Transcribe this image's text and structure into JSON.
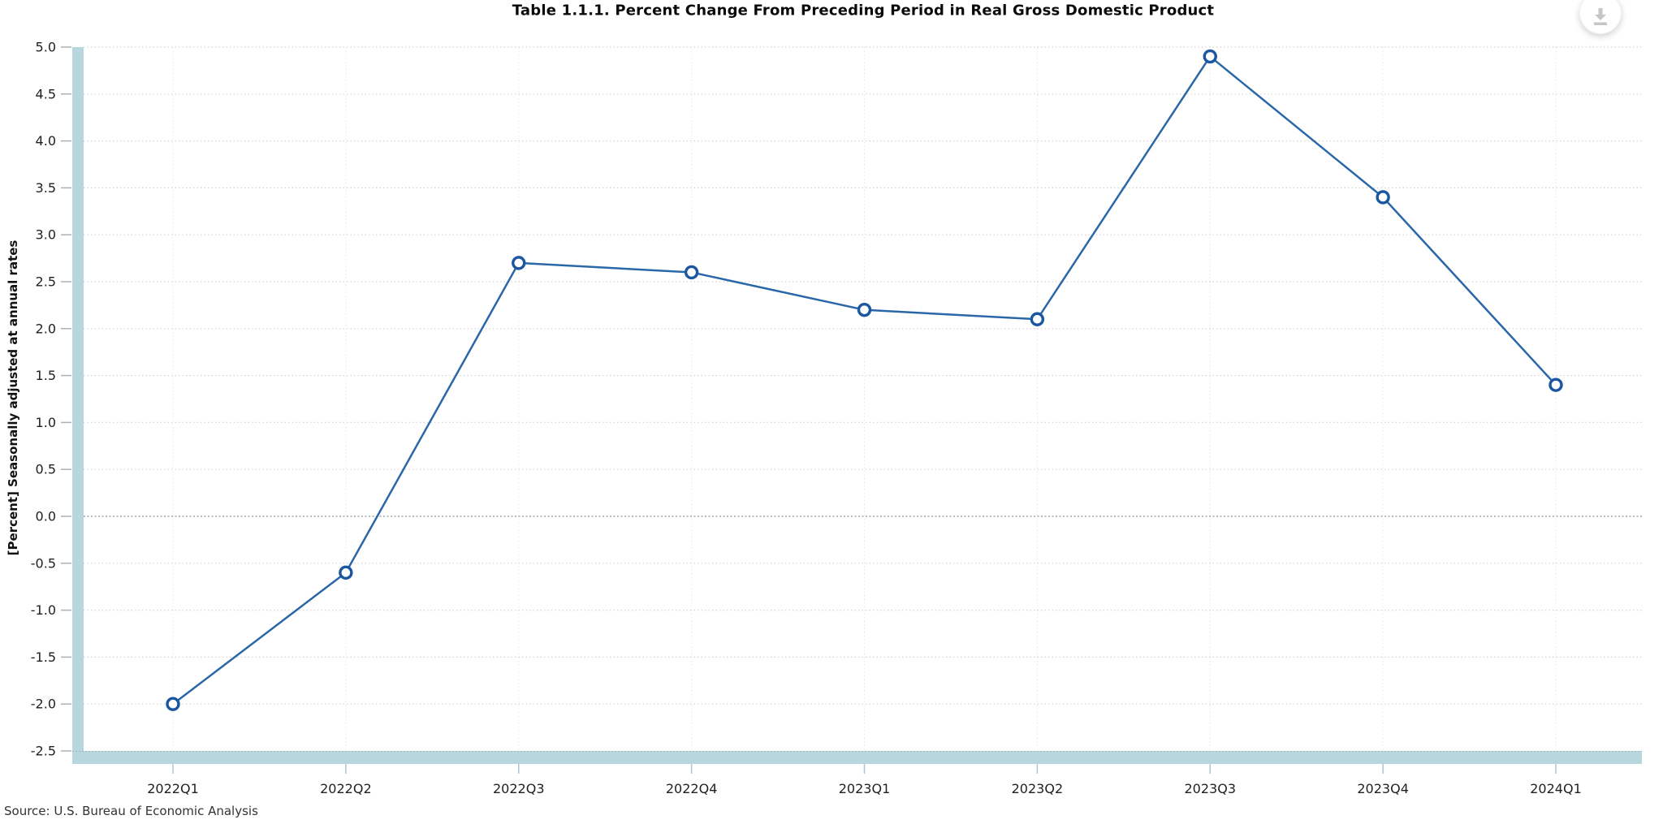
{
  "title": "Table 1.1.1. Percent Change From Preceding Period in Real Gross Domestic Product",
  "source_note": "Source: U.S. Bureau of Economic Analysis",
  "icons": {
    "download": "download-icon"
  },
  "chart_data": {
    "type": "line",
    "title": "Table 1.1.1. Percent Change From Preceding Period in Real Gross Domestic Product",
    "xlabel": "",
    "ylabel": "[Percent] Seasonally adjusted at annual rates",
    "categories": [
      "2022Q1",
      "2022Q2",
      "2022Q3",
      "2022Q4",
      "2023Q1",
      "2023Q2",
      "2023Q3",
      "2023Q4",
      "2024Q1"
    ],
    "values": [
      -2.0,
      -0.6,
      2.7,
      2.6,
      2.2,
      2.1,
      4.9,
      3.4,
      1.4
    ],
    "ylim": [
      -2.5,
      5.0
    ],
    "ytick_step": 0.5,
    "ytick_labels": [
      "5.0",
      "4.5",
      "4.0",
      "3.5",
      "3.0",
      "2.5",
      "2.0",
      "1.5",
      "1.0",
      "0.5",
      "0.0",
      "-0.5",
      "-1.0",
      "-1.5",
      "-2.0",
      "-2.5"
    ],
    "grid": true,
    "legend": "none",
    "marker": "open-circle"
  },
  "colors": {
    "line": "#2a67a8",
    "marker_stroke": "#1b57a0",
    "marker_fill": "#ffffff",
    "axis_band": "#b8d6de",
    "gridline": "#d4d4d4",
    "zero_line": "#8f8f8f",
    "v_gridline": "#e7e7e7",
    "x_tick": "#aac7d1",
    "y_tick": "#b0b0b0",
    "tick_label": "#1f1f1f",
    "icon_gray": "#c6c6c6"
  }
}
